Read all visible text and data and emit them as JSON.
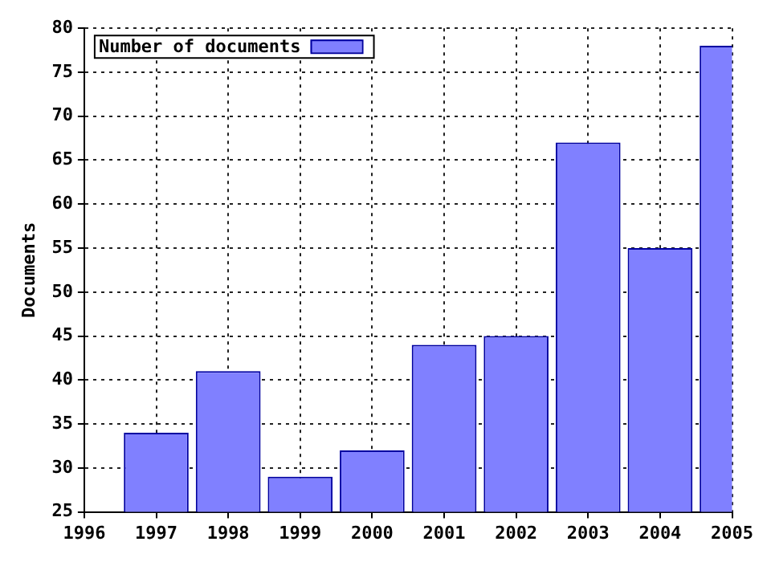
{
  "chart_data": {
    "type": "bar",
    "ylabel": "Documents",
    "x": [
      1997,
      1998,
      1999,
      2000,
      2001,
      2002,
      2003,
      2004,
      2005
    ],
    "series": [
      {
        "name": "Number of documents",
        "color": "#8080ff",
        "values": [
          34,
          41,
          29,
          32,
          44,
          45,
          67,
          55,
          78
        ]
      }
    ],
    "xlim": [
      1996,
      2005
    ],
    "xticks": [
      1996,
      1997,
      1998,
      1999,
      2000,
      2001,
      2002,
      2003,
      2004,
      2005
    ],
    "ylim": [
      25,
      80
    ],
    "yticks": [
      25,
      30,
      35,
      40,
      45,
      50,
      55,
      60,
      65,
      70,
      75,
      80
    ],
    "grid": true,
    "legend": "top left"
  }
}
